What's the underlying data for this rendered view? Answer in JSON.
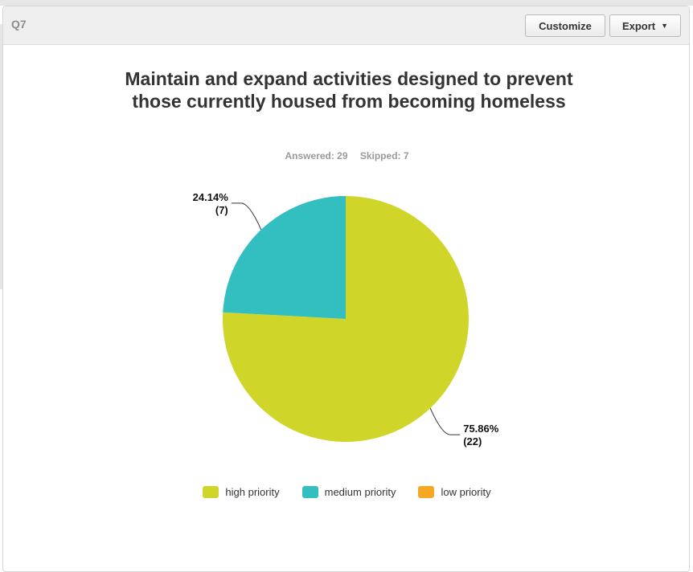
{
  "question": {
    "number": "Q7"
  },
  "toolbar": {
    "customize_label": "Customize",
    "export_label": "Export"
  },
  "stats": {
    "answered": "Answered: 29",
    "skipped": "Skipped: 7"
  },
  "colors": {
    "high": "#cfd629",
    "medium": "#33bec0",
    "low": "#f6a823"
  },
  "chart_data": {
    "type": "pie",
    "title": "Maintain and expand activities designed to prevent those currently housed from becoming homeless",
    "slices": [
      {
        "label": "high priority",
        "percent": 75.86,
        "count": 22,
        "pct_text": "75.86%",
        "count_text": "(22)",
        "color": "#cfd629"
      },
      {
        "label": "medium priority",
        "percent": 24.14,
        "count": 7,
        "pct_text": "24.14%",
        "count_text": "(7)",
        "color": "#33bec0"
      },
      {
        "label": "low priority",
        "percent": 0,
        "count": 0,
        "pct_text": "",
        "count_text": "",
        "color": "#f6a823"
      }
    ],
    "legend": {
      "placement": "bottom",
      "items": [
        "high priority",
        "medium priority",
        "low priority"
      ]
    }
  }
}
